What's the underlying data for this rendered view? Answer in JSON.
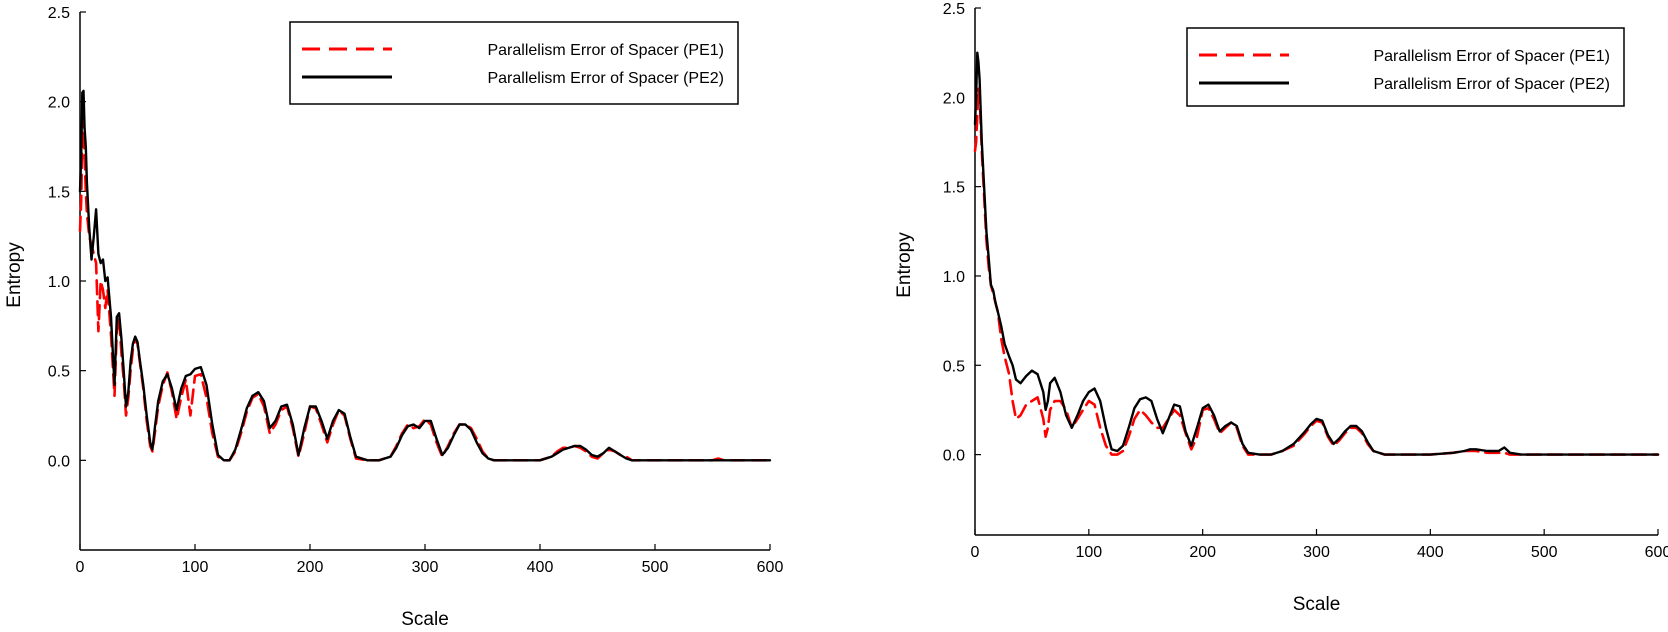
{
  "chart_data": [
    {
      "type": "line",
      "xlabel": "Scale",
      "ylabel": "Entropy",
      "xlim": [
        0,
        600
      ],
      "ylim": [
        -0.5,
        2.5
      ],
      "xticks": [
        "0",
        "100",
        "200",
        "300",
        "400",
        "500",
        "600"
      ],
      "yticks": [
        "0.0",
        "0.5",
        "1.0",
        "1.5",
        "2.0",
        "2.5"
      ],
      "grid": false,
      "legend_position": "top-right",
      "series": [
        {
          "name": "Parallelism Error of Spacer (PE1)",
          "color": "#ff0000",
          "style": "dashed",
          "x": [
            0,
            1,
            2,
            3,
            4,
            5,
            6,
            8,
            10,
            12,
            14,
            16,
            18,
            20,
            22,
            24,
            27,
            30,
            32,
            34,
            36,
            38,
            40,
            42,
            44,
            46,
            48,
            50,
            52,
            55,
            58,
            61,
            63,
            65,
            68,
            72,
            76,
            80,
            84,
            88,
            92,
            96,
            100,
            105,
            110,
            115,
            120,
            125,
            130,
            135,
            140,
            145,
            150,
            155,
            160,
            165,
            170,
            175,
            180,
            185,
            190,
            195,
            200,
            205,
            210,
            215,
            220,
            225,
            230,
            235,
            240,
            250,
            260,
            270,
            275,
            280,
            285,
            290,
            295,
            300,
            305,
            310,
            315,
            320,
            325,
            330,
            335,
            340,
            345,
            350,
            355,
            360,
            365,
            380,
            400,
            410,
            415,
            420,
            425,
            430,
            435,
            440,
            445,
            450,
            455,
            460,
            465,
            470,
            475,
            480,
            500,
            550,
            555,
            560,
            600
          ],
          "y": [
            1.28,
            1.45,
            1.8,
            1.9,
            1.7,
            1.5,
            1.38,
            1.25,
            1.2,
            1.15,
            1.1,
            0.72,
            1.0,
            0.95,
            0.85,
            0.95,
            0.7,
            0.36,
            0.72,
            0.8,
            0.6,
            0.45,
            0.25,
            0.35,
            0.5,
            0.62,
            0.68,
            0.65,
            0.55,
            0.4,
            0.22,
            0.08,
            0.05,
            0.15,
            0.3,
            0.42,
            0.49,
            0.38,
            0.23,
            0.35,
            0.45,
            0.25,
            0.47,
            0.48,
            0.35,
            0.15,
            0.02,
            0.0,
            0.0,
            0.05,
            0.15,
            0.27,
            0.35,
            0.37,
            0.3,
            0.15,
            0.2,
            0.28,
            0.3,
            0.18,
            0.02,
            0.15,
            0.3,
            0.29,
            0.2,
            0.1,
            0.2,
            0.28,
            0.25,
            0.12,
            0.01,
            0.0,
            0.0,
            0.02,
            0.08,
            0.15,
            0.2,
            0.18,
            0.19,
            0.23,
            0.2,
            0.1,
            0.02,
            0.08,
            0.15,
            0.2,
            0.2,
            0.18,
            0.12,
            0.05,
            0.01,
            0.0,
            0.0,
            0.0,
            0.0,
            0.02,
            0.05,
            0.07,
            0.07,
            0.08,
            0.07,
            0.05,
            0.02,
            0.01,
            0.04,
            0.06,
            0.05,
            0.03,
            0.02,
            0.0,
            0.0,
            0.0,
            0.01,
            0.0,
            0.0
          ]
        },
        {
          "name": "Parallelism Error of Spacer (PE2)",
          "color": "#000000",
          "style": "solid",
          "x": [
            0,
            1,
            2,
            3,
            4,
            5,
            6,
            8,
            10,
            12,
            14,
            16,
            18,
            20,
            22,
            24,
            27,
            30,
            32,
            34,
            36,
            38,
            40,
            42,
            44,
            46,
            48,
            50,
            52,
            55,
            58,
            61,
            63,
            65,
            68,
            72,
            76,
            80,
            84,
            88,
            92,
            96,
            100,
            105,
            110,
            115,
            120,
            125,
            130,
            135,
            140,
            145,
            150,
            155,
            160,
            165,
            170,
            175,
            180,
            185,
            190,
            195,
            200,
            205,
            210,
            215,
            220,
            225,
            230,
            235,
            240,
            250,
            260,
            270,
            275,
            280,
            285,
            290,
            295,
            300,
            305,
            310,
            315,
            320,
            325,
            330,
            335,
            340,
            345,
            350,
            355,
            360,
            365,
            380,
            400,
            410,
            415,
            420,
            425,
            430,
            435,
            440,
            445,
            450,
            455,
            460,
            465,
            470,
            475,
            480,
            500,
            550,
            555,
            560,
            600
          ],
          "y": [
            1.5,
            1.7,
            2.05,
            2.06,
            1.85,
            1.75,
            1.55,
            1.3,
            1.12,
            1.25,
            1.4,
            1.15,
            1.1,
            1.12,
            1.0,
            1.02,
            0.8,
            0.42,
            0.8,
            0.82,
            0.68,
            0.5,
            0.3,
            0.38,
            0.55,
            0.65,
            0.69,
            0.66,
            0.56,
            0.42,
            0.25,
            0.1,
            0.06,
            0.18,
            0.33,
            0.44,
            0.48,
            0.4,
            0.28,
            0.4,
            0.47,
            0.48,
            0.51,
            0.52,
            0.42,
            0.2,
            0.03,
            0.0,
            0.0,
            0.06,
            0.17,
            0.29,
            0.36,
            0.38,
            0.33,
            0.18,
            0.22,
            0.3,
            0.31,
            0.2,
            0.03,
            0.18,
            0.3,
            0.3,
            0.22,
            0.12,
            0.22,
            0.28,
            0.26,
            0.13,
            0.02,
            0.0,
            0.0,
            0.02,
            0.07,
            0.14,
            0.19,
            0.2,
            0.18,
            0.22,
            0.22,
            0.12,
            0.03,
            0.07,
            0.14,
            0.2,
            0.2,
            0.17,
            0.1,
            0.04,
            0.01,
            0.0,
            0.0,
            0.0,
            0.0,
            0.02,
            0.04,
            0.06,
            0.07,
            0.08,
            0.08,
            0.06,
            0.03,
            0.02,
            0.04,
            0.07,
            0.05,
            0.03,
            0.01,
            0.0,
            0.0,
            0.0,
            0.0,
            0.0,
            0.0
          ]
        }
      ]
    },
    {
      "type": "line",
      "xlabel": "Scale",
      "ylabel": "Entropy",
      "xlim": [
        0,
        600
      ],
      "ylim": [
        -0.45,
        2.5
      ],
      "xticks": [
        "0",
        "100",
        "200",
        "300",
        "400",
        "500",
        "600"
      ],
      "yticks": [
        "0.0",
        "0.5",
        "1.0",
        "1.5",
        "2.0",
        "2.5"
      ],
      "grid": false,
      "legend_position": "top-right",
      "series": [
        {
          "name": "Parallelism Error of Spacer (PE1)",
          "color": "#ff0000",
          "style": "dashed",
          "x": [
            0,
            1,
            2,
            3,
            4,
            6,
            8,
            10,
            12,
            14,
            16,
            18,
            20,
            23,
            26,
            30,
            33,
            36,
            40,
            45,
            50,
            55,
            60,
            62,
            64,
            66,
            70,
            75,
            80,
            85,
            90,
            95,
            100,
            105,
            110,
            115,
            120,
            125,
            130,
            135,
            140,
            145,
            150,
            155,
            160,
            165,
            170,
            175,
            180,
            185,
            190,
            195,
            200,
            205,
            210,
            215,
            220,
            225,
            230,
            235,
            240,
            250,
            260,
            270,
            280,
            290,
            295,
            300,
            305,
            310,
            315,
            320,
            325,
            330,
            335,
            340,
            345,
            350,
            360,
            380,
            400,
            420,
            430,
            435,
            440,
            450,
            460,
            465,
            470,
            480,
            500,
            550,
            600
          ],
          "y": [
            1.7,
            1.75,
            1.9,
            2.05,
            2.0,
            1.7,
            1.45,
            1.2,
            1.05,
            0.95,
            0.9,
            0.85,
            0.8,
            0.65,
            0.55,
            0.45,
            0.3,
            0.2,
            0.22,
            0.28,
            0.3,
            0.32,
            0.2,
            0.1,
            0.15,
            0.25,
            0.3,
            0.3,
            0.25,
            0.15,
            0.2,
            0.25,
            0.3,
            0.28,
            0.15,
            0.05,
            0.0,
            0.0,
            0.02,
            0.1,
            0.2,
            0.25,
            0.22,
            0.18,
            0.15,
            0.15,
            0.2,
            0.25,
            0.22,
            0.12,
            0.03,
            0.1,
            0.25,
            0.26,
            0.2,
            0.12,
            0.15,
            0.18,
            0.15,
            0.05,
            0.0,
            0.0,
            0.0,
            0.02,
            0.05,
            0.12,
            0.16,
            0.19,
            0.18,
            0.1,
            0.05,
            0.08,
            0.12,
            0.15,
            0.15,
            0.12,
            0.06,
            0.02,
            0.0,
            0.0,
            0.0,
            0.01,
            0.02,
            0.02,
            0.02,
            0.01,
            0.01,
            0.01,
            0.0,
            0.0,
            0.0,
            0.0,
            0.0
          ]
        },
        {
          "name": "Parallelism Error of Spacer (PE2)",
          "color": "#000000",
          "style": "solid",
          "x": [
            0,
            1,
            2,
            3,
            4,
            6,
            8,
            10,
            12,
            14,
            16,
            18,
            20,
            23,
            26,
            30,
            33,
            36,
            40,
            45,
            50,
            55,
            60,
            62,
            64,
            66,
            70,
            75,
            80,
            85,
            90,
            95,
            100,
            105,
            110,
            115,
            120,
            125,
            130,
            135,
            140,
            145,
            150,
            155,
            160,
            165,
            170,
            175,
            180,
            185,
            190,
            195,
            200,
            205,
            210,
            215,
            220,
            225,
            230,
            235,
            240,
            250,
            260,
            270,
            280,
            290,
            295,
            300,
            305,
            310,
            315,
            320,
            325,
            330,
            335,
            340,
            345,
            350,
            360,
            380,
            400,
            420,
            430,
            435,
            440,
            450,
            460,
            465,
            470,
            480,
            500,
            550,
            600
          ],
          "y": [
            1.85,
            2.0,
            2.25,
            2.2,
            2.1,
            1.75,
            1.5,
            1.25,
            1.1,
            0.95,
            0.92,
            0.85,
            0.8,
            0.72,
            0.62,
            0.55,
            0.5,
            0.42,
            0.4,
            0.44,
            0.47,
            0.45,
            0.35,
            0.25,
            0.3,
            0.4,
            0.43,
            0.35,
            0.22,
            0.15,
            0.22,
            0.3,
            0.35,
            0.37,
            0.3,
            0.15,
            0.03,
            0.02,
            0.05,
            0.15,
            0.26,
            0.31,
            0.32,
            0.3,
            0.2,
            0.12,
            0.2,
            0.28,
            0.27,
            0.13,
            0.05,
            0.15,
            0.26,
            0.28,
            0.22,
            0.13,
            0.16,
            0.18,
            0.16,
            0.06,
            0.01,
            0.0,
            0.0,
            0.02,
            0.06,
            0.13,
            0.17,
            0.2,
            0.19,
            0.11,
            0.06,
            0.09,
            0.13,
            0.16,
            0.16,
            0.13,
            0.07,
            0.02,
            0.0,
            0.0,
            0.0,
            0.01,
            0.02,
            0.03,
            0.03,
            0.02,
            0.02,
            0.04,
            0.01,
            0.0,
            0.0,
            0.0,
            0.0
          ]
        }
      ]
    }
  ]
}
